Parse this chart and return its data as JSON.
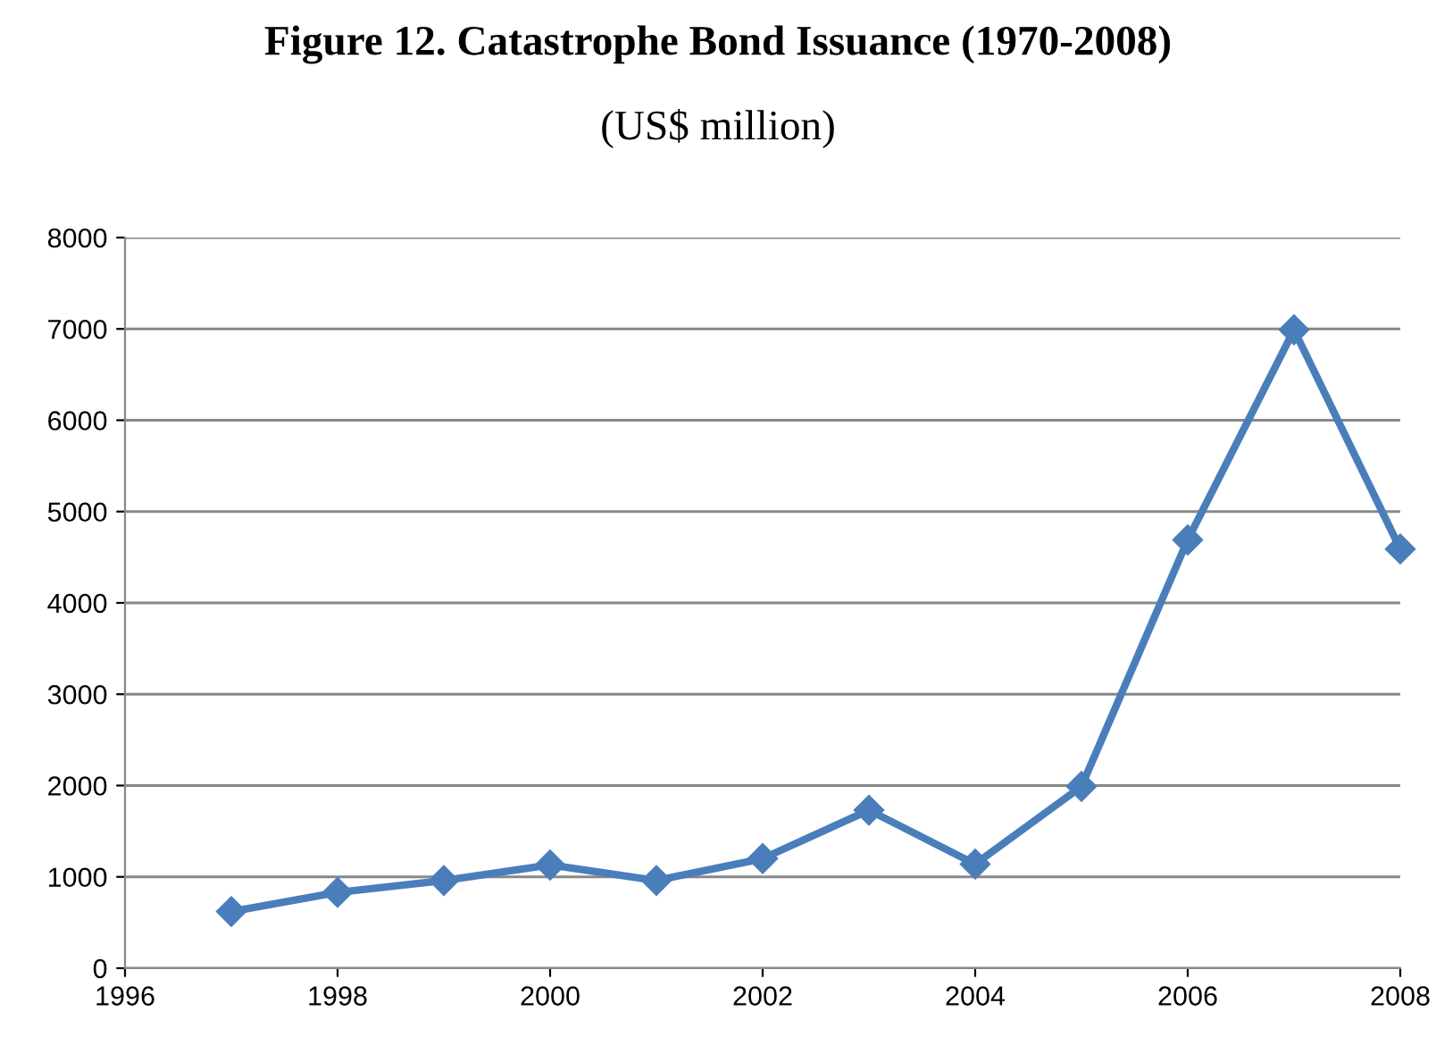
{
  "chart_data": {
    "type": "line",
    "title": "Figure 12. Catastrophe Bond Issuance (1970-2008)",
    "subtitle": "(US$ million)",
    "x": [
      1997,
      1998,
      1999,
      2000,
      2001,
      2002,
      2003,
      2004,
      2005,
      2006,
      2007,
      2008
    ],
    "series": [
      {
        "color": "#4a7ebb",
        "values": [
          620,
          830,
          960,
          1130,
          960,
          1200,
          1730,
          1140,
          1990,
          4690,
          6990,
          4590
        ]
      }
    ],
    "xlim": [
      1996,
      2008
    ],
    "xticks": [
      1996,
      1998,
      2000,
      2002,
      2004,
      2006,
      2008
    ],
    "ylim": [
      0,
      8000
    ],
    "yticks": [
      0,
      1000,
      2000,
      3000,
      4000,
      5000,
      6000,
      7000,
      8000
    ],
    "grid": "y",
    "marker": "diamond",
    "line_style": "solid",
    "legend": false
  }
}
